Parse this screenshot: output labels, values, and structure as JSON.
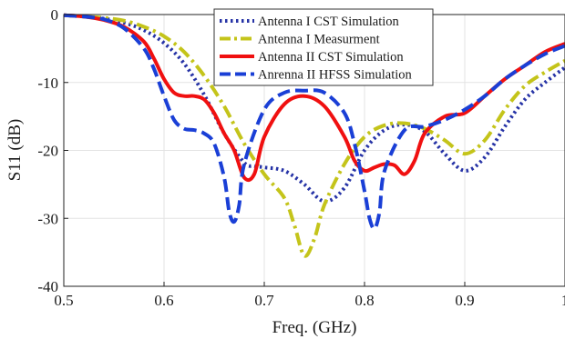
{
  "chart_data": {
    "type": "line",
    "xlabel": "Freq. (GHz)",
    "ylabel": "S11 (dB)",
    "xlim": [
      0.5,
      1.0
    ],
    "ylim": [
      -40,
      0
    ],
    "xticks": [
      "0.5",
      "0.6",
      "0.7",
      "0.8",
      "0.9",
      "1"
    ],
    "yticks": [
      "0",
      "-10",
      "-20",
      "-30",
      "-40"
    ],
    "grid": true,
    "legend_position": "top-center",
    "series": [
      {
        "name": "Antenna I CST Simulation",
        "color": "#2633a6",
        "style": "dotted",
        "x": [
          0.5,
          0.52,
          0.54,
          0.56,
          0.58,
          0.6,
          0.62,
          0.64,
          0.66,
          0.68,
          0.69,
          0.7,
          0.72,
          0.74,
          0.76,
          0.78,
          0.8,
          0.82,
          0.84,
          0.86,
          0.88,
          0.9,
          0.92,
          0.94,
          0.96,
          0.98,
          1.0
        ],
        "y": [
          -0.1,
          -0.3,
          -0.6,
          -1.2,
          -2.3,
          -4.2,
          -7.2,
          -11.8,
          -17.5,
          -21.8,
          -22.3,
          -22.5,
          -23.0,
          -25.0,
          -27.5,
          -25.5,
          -20.0,
          -17.0,
          -16.2,
          -17.2,
          -20.5,
          -23.0,
          -21.0,
          -16.5,
          -12.5,
          -10.0,
          -7.8
        ]
      },
      {
        "name": "Antenna I Measurment",
        "color": "#c4c41a",
        "style": "dashdot",
        "x": [
          0.5,
          0.52,
          0.54,
          0.56,
          0.58,
          0.6,
          0.62,
          0.64,
          0.66,
          0.68,
          0.7,
          0.72,
          0.73,
          0.74,
          0.75,
          0.76,
          0.78,
          0.8,
          0.82,
          0.84,
          0.86,
          0.88,
          0.9,
          0.92,
          0.94,
          0.96,
          0.98,
          1.0
        ],
        "y": [
          -0.1,
          -0.3,
          -0.5,
          -0.9,
          -1.8,
          -3.2,
          -5.5,
          -9.0,
          -13.5,
          -19.0,
          -23.5,
          -27.0,
          -31.0,
          -35.5,
          -33.0,
          -28.0,
          -22.0,
          -18.0,
          -16.3,
          -16.0,
          -16.8,
          -18.5,
          -20.5,
          -18.5,
          -14.0,
          -10.5,
          -8.5,
          -6.8
        ]
      },
      {
        "name": "Antenna II CST Simulation",
        "color": "#f01010",
        "style": "solid",
        "x": [
          0.5,
          0.52,
          0.54,
          0.56,
          0.58,
          0.59,
          0.6,
          0.61,
          0.62,
          0.63,
          0.64,
          0.65,
          0.66,
          0.67,
          0.68,
          0.69,
          0.7,
          0.72,
          0.74,
          0.76,
          0.78,
          0.79,
          0.8,
          0.81,
          0.82,
          0.83,
          0.84,
          0.85,
          0.86,
          0.88,
          0.9,
          0.92,
          0.94,
          0.96,
          0.98,
          1.0
        ],
        "y": [
          -0.1,
          -0.3,
          -0.8,
          -1.8,
          -4.0,
          -6.5,
          -9.5,
          -11.5,
          -12.0,
          -12.0,
          -12.5,
          -14.5,
          -17.5,
          -20.0,
          -24.0,
          -23.5,
          -18.0,
          -13.2,
          -12.0,
          -13.5,
          -18.0,
          -21.5,
          -23.0,
          -22.5,
          -22.0,
          -22.2,
          -23.5,
          -21.5,
          -17.5,
          -15.0,
          -14.5,
          -12.0,
          -9.5,
          -7.5,
          -5.5,
          -4.3
        ]
      },
      {
        "name": "Anrenna II HFSS Simulation",
        "color": "#1a3fd6",
        "style": "dashed",
        "x": [
          0.5,
          0.52,
          0.54,
          0.56,
          0.58,
          0.59,
          0.6,
          0.61,
          0.62,
          0.63,
          0.64,
          0.65,
          0.66,
          0.665,
          0.67,
          0.675,
          0.68,
          0.7,
          0.72,
          0.74,
          0.76,
          0.78,
          0.79,
          0.8,
          0.805,
          0.81,
          0.815,
          0.82,
          0.84,
          0.86,
          0.88,
          0.9,
          0.92,
          0.94,
          0.96,
          0.98,
          1.0
        ],
        "y": [
          -0.1,
          -0.3,
          -0.7,
          -2.0,
          -5.0,
          -8.0,
          -12.0,
          -15.5,
          -16.8,
          -17.0,
          -17.5,
          -19.0,
          -24.0,
          -29.0,
          -30.5,
          -28.0,
          -22.0,
          -14.0,
          -11.5,
          -11.2,
          -11.5,
          -14.5,
          -19.0,
          -26.0,
          -30.0,
          -31.5,
          -29.0,
          -23.0,
          -17.0,
          -16.5,
          -15.5,
          -14.0,
          -12.0,
          -9.5,
          -7.5,
          -5.8,
          -4.6
        ]
      }
    ]
  }
}
